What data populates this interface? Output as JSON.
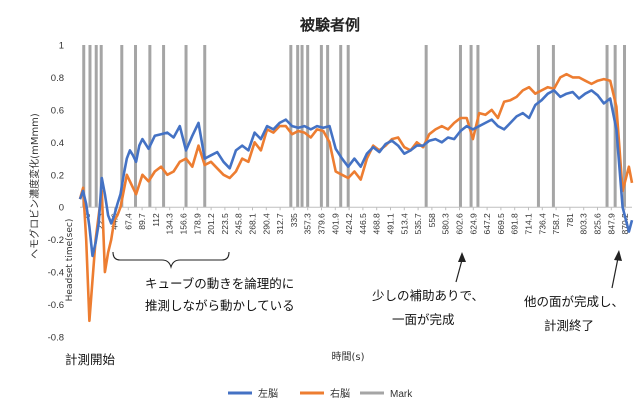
{
  "chart_data": {
    "type": "line",
    "title": "被験者例",
    "xlabel": "時間(s)",
    "ylabel": "ヘモグロビン濃度変化(mMmm)",
    "x_axis_title_inline": "Headset time(sec)",
    "ylim": [
      -0.8,
      1
    ],
    "yticks": [
      "-0.8",
      "-0.6",
      "-0.4",
      "-0.2",
      "0",
      "0.2",
      "0.4",
      "0.6",
      "0.8",
      "1"
    ],
    "xlim": [
      0,
      885
    ],
    "x_tick_labels": [
      "0",
      "22.3",
      "44.6",
      "67.4",
      "89.7",
      "112",
      "134.3",
      "156.6",
      "178.9",
      "201.2",
      "223.5",
      "245.8",
      "268.1",
      "290.4",
      "312.7",
      "335",
      "357.3",
      "379.6",
      "401.9",
      "424.2",
      "446.5",
      "468.8",
      "491.1",
      "513.4",
      "535.7",
      "558",
      "580.3",
      "602.6",
      "624.9",
      "647.2",
      "669.5",
      "691.8",
      "714.1",
      "736.4",
      "758.7",
      "781",
      "803.3",
      "825.6",
      "847.9",
      "870.2"
    ],
    "mark_times": [
      6,
      16,
      26,
      34,
      67,
      89,
      112,
      134,
      170,
      200,
      338,
      349,
      356,
      365,
      387,
      397,
      418,
      430,
      555,
      610,
      627,
      638,
      735,
      759,
      845,
      858,
      873
    ],
    "series": [
      {
        "name": "左脳",
        "color": "#4472C4",
        "x": [
          0,
          5,
          10,
          15,
          20,
          25,
          30,
          35,
          40,
          45,
          50,
          55,
          60,
          65,
          70,
          75,
          80,
          85,
          90,
          95,
          100,
          110,
          120,
          130,
          140,
          150,
          160,
          170,
          180,
          190,
          200,
          210,
          220,
          230,
          240,
          250,
          260,
          270,
          280,
          290,
          300,
          310,
          320,
          330,
          340,
          350,
          360,
          370,
          380,
          390,
          400,
          410,
          420,
          430,
          440,
          450,
          460,
          470,
          480,
          490,
          500,
          510,
          520,
          530,
          540,
          550,
          560,
          570,
          580,
          590,
          600,
          610,
          620,
          630,
          640,
          650,
          660,
          670,
          680,
          690,
          700,
          710,
          720,
          730,
          740,
          750,
          760,
          770,
          780,
          790,
          800,
          810,
          820,
          830,
          840,
          850,
          860,
          870,
          880,
          885
        ],
        "y": [
          0.05,
          0.1,
          0.02,
          -0.12,
          -0.3,
          -0.22,
          -0.1,
          0.18,
          0.08,
          -0.05,
          -0.1,
          -0.05,
          0.02,
          0.08,
          0.2,
          0.3,
          0.35,
          0.32,
          0.28,
          0.38,
          0.42,
          0.36,
          0.44,
          0.45,
          0.46,
          0.43,
          0.5,
          0.35,
          0.44,
          0.52,
          0.3,
          0.32,
          0.34,
          0.28,
          0.24,
          0.35,
          0.38,
          0.35,
          0.46,
          0.42,
          0.5,
          0.48,
          0.52,
          0.54,
          0.5,
          0.49,
          0.5,
          0.48,
          0.5,
          0.49,
          0.5,
          0.36,
          0.3,
          0.25,
          0.3,
          0.25,
          0.33,
          0.37,
          0.34,
          0.39,
          0.41,
          0.38,
          0.33,
          0.35,
          0.38,
          0.38,
          0.41,
          0.42,
          0.4,
          0.43,
          0.42,
          0.47,
          0.5,
          0.48,
          0.5,
          0.52,
          0.54,
          0.5,
          0.48,
          0.52,
          0.56,
          0.58,
          0.55,
          0.63,
          0.66,
          0.7,
          0.72,
          0.68,
          0.7,
          0.71,
          0.67,
          0.7,
          0.72,
          0.69,
          0.64,
          0.67,
          0.48,
          0.0,
          -0.15,
          -0.08
        ]
      },
      {
        "name": "右脳",
        "color": "#ED7D31",
        "x": [
          0,
          5,
          10,
          15,
          20,
          25,
          30,
          35,
          40,
          45,
          50,
          55,
          60,
          65,
          70,
          75,
          80,
          85,
          90,
          95,
          100,
          110,
          120,
          130,
          140,
          150,
          160,
          170,
          180,
          190,
          200,
          210,
          220,
          230,
          240,
          250,
          260,
          270,
          280,
          290,
          300,
          310,
          320,
          330,
          340,
          350,
          360,
          370,
          380,
          390,
          400,
          410,
          420,
          430,
          440,
          450,
          460,
          470,
          480,
          490,
          500,
          510,
          520,
          530,
          540,
          550,
          560,
          570,
          580,
          590,
          600,
          610,
          620,
          630,
          640,
          650,
          660,
          670,
          680,
          690,
          700,
          710,
          720,
          730,
          740,
          750,
          760,
          770,
          780,
          790,
          800,
          810,
          820,
          830,
          840,
          850,
          860,
          870,
          880,
          885
        ],
        "y": [
          0.05,
          0.12,
          -0.2,
          -0.7,
          -0.45,
          -0.2,
          -0.05,
          0.1,
          -0.4,
          -0.28,
          -0.2,
          -0.08,
          -0.05,
          0.0,
          0.1,
          0.2,
          0.16,
          0.12,
          0.08,
          0.14,
          0.2,
          0.16,
          0.22,
          0.25,
          0.2,
          0.22,
          0.28,
          0.3,
          0.25,
          0.38,
          0.26,
          0.28,
          0.24,
          0.2,
          0.18,
          0.22,
          0.3,
          0.28,
          0.4,
          0.35,
          0.48,
          0.46,
          0.5,
          0.5,
          0.45,
          0.47,
          0.46,
          0.43,
          0.48,
          0.47,
          0.4,
          0.22,
          0.2,
          0.18,
          0.22,
          0.17,
          0.3,
          0.38,
          0.35,
          0.38,
          0.42,
          0.43,
          0.37,
          0.35,
          0.4,
          0.37,
          0.45,
          0.48,
          0.5,
          0.48,
          0.52,
          0.55,
          0.55,
          0.42,
          0.58,
          0.57,
          0.6,
          0.55,
          0.65,
          0.66,
          0.68,
          0.72,
          0.74,
          0.7,
          0.72,
          0.74,
          0.73,
          0.8,
          0.82,
          0.8,
          0.8,
          0.78,
          0.76,
          0.78,
          0.79,
          0.78,
          0.62,
          0.1,
          0.25,
          0.15
        ]
      },
      {
        "name": "Mark",
        "color": "#A5A5A5"
      }
    ],
    "annotations": [
      {
        "text": "計測開始"
      },
      {
        "text": "キューブの動きを論理的に"
      },
      {
        "text": "推測しながら動かしている"
      },
      {
        "text": "少しの補助ありで、"
      },
      {
        "text": "一面が完成"
      },
      {
        "text": "他の面が完成し、"
      },
      {
        "text": "計測終了"
      }
    ],
    "legend_position": "bottom",
    "grid": false
  }
}
